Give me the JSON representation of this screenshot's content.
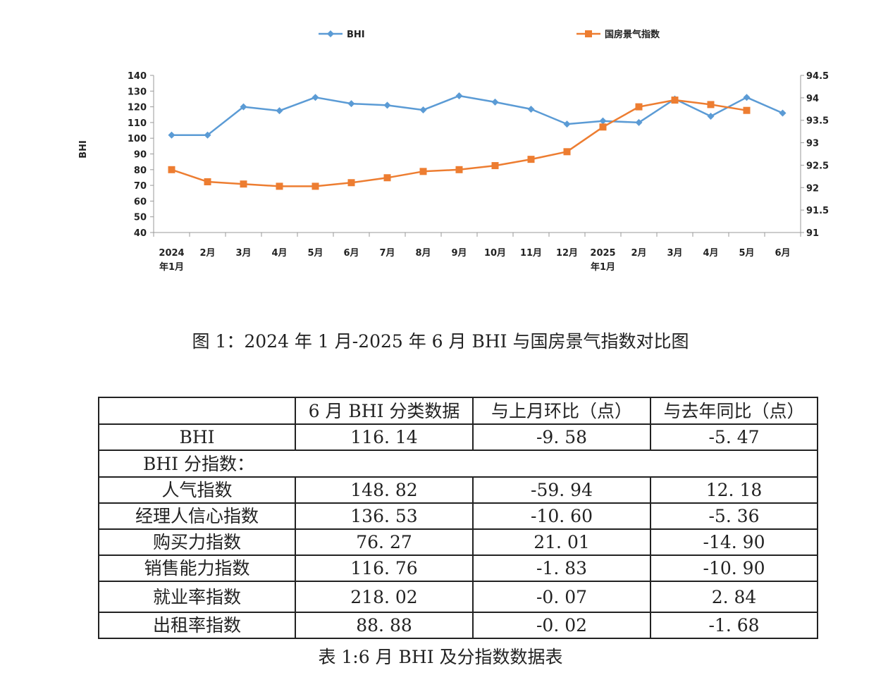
{
  "chart_data": {
    "type": "line",
    "title": "",
    "ylabel": "BHI",
    "ylabel_right": "",
    "ylim": [
      40,
      140
    ],
    "y_ticks": [
      40,
      50,
      60,
      70,
      80,
      90,
      100,
      110,
      120,
      130,
      140
    ],
    "ylim_right": [
      91,
      94.5
    ],
    "y_ticks_right": [
      "91",
      "91.5",
      "92",
      "92.5",
      "93",
      "93.5",
      "94",
      "94.5"
    ],
    "legend_position": "top",
    "grid": false,
    "categories": [
      {
        "line1": "2024",
        "line2": "年1月"
      },
      {
        "line1": "2月",
        "line2": ""
      },
      {
        "line1": "3月",
        "line2": ""
      },
      {
        "line1": "4月",
        "line2": ""
      },
      {
        "line1": "5月",
        "line2": ""
      },
      {
        "line1": "6月",
        "line2": ""
      },
      {
        "line1": "7月",
        "line2": ""
      },
      {
        "line1": "8月",
        "line2": ""
      },
      {
        "line1": "9月",
        "line2": ""
      },
      {
        "line1": "10月",
        "line2": ""
      },
      {
        "line1": "11月",
        "line2": ""
      },
      {
        "line1": "12月",
        "line2": ""
      },
      {
        "line1": "2025",
        "line2": "年1月"
      },
      {
        "line1": "2月",
        "line2": ""
      },
      {
        "line1": "3月",
        "line2": ""
      },
      {
        "line1": "4月",
        "line2": ""
      },
      {
        "line1": "5月",
        "line2": ""
      },
      {
        "line1": "6月",
        "line2": ""
      }
    ],
    "series": [
      {
        "name": "BHI",
        "axis": "left",
        "color": "#5b9bd5",
        "marker": "diamond",
        "values": [
          102,
          102,
          120,
          117.5,
          126,
          122,
          121,
          118,
          127,
          123,
          118.5,
          109,
          111,
          110,
          125,
          114,
          126,
          116
        ]
      },
      {
        "name": "国房景气指数",
        "axis": "right",
        "color": "#ed7d31",
        "marker": "square",
        "values": [
          92.4,
          92.13,
          92.08,
          92.03,
          92.03,
          92.11,
          92.22,
          92.36,
          92.4,
          92.49,
          92.63,
          92.8,
          93.35,
          93.8,
          93.95,
          93.85,
          93.72,
          null
        ]
      }
    ]
  },
  "figure_caption": "图 1：2024 年 1 月-2025 年 6 月 BHI 与国房景气指数对比图",
  "table": {
    "headers": [
      "",
      "6 月 BHI 分类数据",
      "与上月环比（点）",
      "与去年同比（点）"
    ],
    "bhi_row": {
      "name": "BHI",
      "value": "116. 14",
      "mom": "-9. 58",
      "yoy": "-5. 47"
    },
    "subindex_heading": "BHI 分指数：",
    "sub_rows": [
      {
        "name": "人气指数",
        "value": "148. 82",
        "mom": "-59. 94",
        "yoy": "12. 18"
      },
      {
        "name": "经理人信心指数",
        "value": "136. 53",
        "mom": "-10. 60",
        "yoy": "-5. 36"
      },
      {
        "name": "购买力指数",
        "value": "76. 27",
        "mom": "21. 01",
        "yoy": "-14. 90"
      },
      {
        "name": "销售能力指数",
        "value": "116. 76",
        "mom": "-1. 83",
        "yoy": "-10. 90"
      },
      {
        "name": "就业率指数",
        "value": "218. 02",
        "mom": "-0. 07",
        "yoy": "2. 84"
      },
      {
        "name": "出租率指数",
        "value": "88. 88",
        "mom": "-0. 02",
        "yoy": "-1. 68"
      }
    ]
  },
  "table_caption": "表 1:6 月 BHI 及分指数数据表"
}
